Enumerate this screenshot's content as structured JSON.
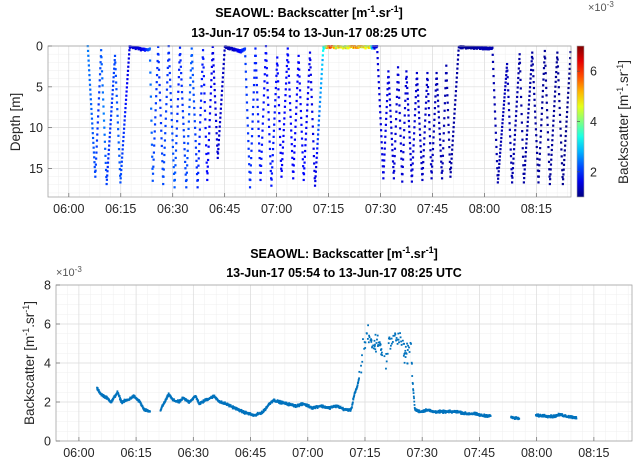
{
  "chart_data": [
    {
      "type": "scatter",
      "title_parts": [
        "SEAOWL: Backscatter [m",
        "-1",
        ".sr",
        "-1",
        "]"
      ],
      "subtitle": "13-Jun-17 05:54 to 13-Jun-17 08:25 UTC",
      "xlabel": "",
      "ylabel": "Depth [m]",
      "xlim": [
        "05:54",
        "08:25"
      ],
      "ylim": [
        0,
        18.5
      ],
      "y_reversed": true,
      "x_ticks": [
        "06:00",
        "06:15",
        "06:30",
        "06:45",
        "07:00",
        "07:15",
        "07:30",
        "07:45",
        "08:00",
        "08:15"
      ],
      "y_ticks": [
        "0",
        "5",
        "10",
        "15"
      ],
      "grid": "major+minor",
      "color_by": "backscatter",
      "colorbar": {
        "label_parts": [
          "Backscatter [m",
          "-1",
          ".sr",
          "-1",
          "]"
        ],
        "exponent_base": "×10",
        "exponent_power": "-3",
        "clim": [
          1,
          7
        ],
        "ticks": [
          "2",
          "4",
          "6"
        ],
        "colormap": "jet",
        "location": "right"
      },
      "profile": [
        [
          "06:05:27",
          0
        ],
        [
          "06:07:38",
          16.0
        ],
        [
          "06:09:19",
          0.5
        ],
        [
          "06:10:54",
          16.9
        ],
        [
          "06:13:19",
          1.2
        ],
        [
          "06:14:53",
          16.7
        ],
        [
          "06:17:33",
          0
        ],
        [
          "06:22:38",
          0.4
        ],
        [
          "06:23:22",
          0.3
        ],
        [
          "06:24:13",
          16.5
        ],
        [
          "06:25:47",
          0.1
        ],
        [
          "06:27:14",
          16.9
        ],
        [
          "06:28:49",
          0
        ],
        [
          "06:30:31",
          17.3
        ],
        [
          "06:32:05",
          0.2
        ],
        [
          "06:33:54",
          17.3
        ],
        [
          "06:35:28",
          0.3
        ],
        [
          "06:37:10",
          17.3
        ],
        [
          "06:38:44",
          0.5
        ],
        [
          "06:39:57",
          16.4
        ],
        [
          "06:41:32",
          0.1
        ],
        [
          "06:42:59",
          13.7
        ],
        [
          "06:45:02",
          0
        ],
        [
          "06:49:38",
          0.5
        ],
        [
          "06:50:51",
          0.3
        ],
        [
          "06:52:18",
          17.3
        ],
        [
          "06:53:52",
          0.3
        ],
        [
          "06:55:20",
          16.4
        ],
        [
          "06:56:54",
          0
        ],
        [
          "06:58:28",
          17.1
        ],
        [
          "07:00:10",
          1.4
        ],
        [
          "07:01:23",
          16.0
        ],
        [
          "07:03:12",
          0.3
        ],
        [
          "07:04:46",
          16.2
        ],
        [
          "07:06:20",
          1.2
        ],
        [
          "07:07:48",
          16.4
        ],
        [
          "07:09:37",
          0.8
        ],
        [
          "07:11:04",
          17.1
        ],
        [
          "07:13:29",
          0
        ],
        [
          "07:28:59",
          0
        ],
        [
          "07:30:48",
          16.2
        ],
        [
          "07:32:15",
          3.1
        ],
        [
          "07:33:50",
          16.2
        ],
        [
          "07:35:02",
          2.6
        ],
        [
          "07:36:15",
          16.6
        ],
        [
          "07:37:27",
          3.1
        ],
        [
          "07:39:02",
          16.6
        ],
        [
          "07:40:29",
          3.3
        ],
        [
          "07:42:04",
          16.4
        ],
        [
          "07:43:31",
          3.3
        ],
        [
          "07:44:43",
          16.2
        ],
        [
          "07:46:10",
          3.3
        ],
        [
          "07:47:45",
          16.2
        ],
        [
          "07:48:58",
          2.4
        ],
        [
          "07:50:10",
          16.0
        ],
        [
          "07:52:35",
          0
        ],
        [
          "08:02:17",
          0.2
        ],
        [
          "08:03:51",
          16.7
        ],
        [
          "08:06:31",
          2.2
        ],
        [
          "08:07:58",
          16.7
        ],
        [
          "08:10:09",
          1.0
        ],
        [
          "08:11:22",
          16.7
        ],
        [
          "08:13:47",
          0.8
        ],
        [
          "08:15:35",
          16.7
        ],
        [
          "08:17:25",
          0.6
        ],
        [
          "08:18:52",
          16.9
        ],
        [
          "08:21:02",
          0.8
        ],
        [
          "08:22:37",
          16.9
        ],
        [
          "08:24:40",
          2.2
        ],
        [
          "08:24:55",
          0
        ]
      ]
    },
    {
      "type": "scatter",
      "title_parts": [
        "SEAOWL: Backscatter [m",
        "-1",
        ".sr",
        "-1",
        "]"
      ],
      "subtitle": "13-Jun-17 05:54 to 13-Jun-17 08:25 UTC",
      "xlabel": "",
      "ylabel_parts": [
        "Backscatter [m",
        "-1",
        ".sr",
        "-1",
        "]"
      ],
      "exponent_base": "×10",
      "exponent_power": "-3",
      "xlim": [
        "05:54",
        "08:25"
      ],
      "ylim": [
        0,
        8
      ],
      "x_ticks": [
        "06:00",
        "06:15",
        "06:30",
        "06:45",
        "07:00",
        "07:15",
        "07:30",
        "07:45",
        "08:00",
        "08:15"
      ],
      "y_ticks": [
        "0",
        "2",
        "4",
        "6",
        "8"
      ],
      "grid": "major+minor",
      "series": {
        "color": "#0072BD",
        "x": [
          "06:04:45",
          "06:05:48",
          "06:07:24",
          "06:08:30",
          "06:10:06",
          "06:11:12",
          "06:12:48",
          "06:14:24",
          "06:16:00",
          "06:17:06",
          "06:18:42",
          "06:21:24",
          "06:22:30",
          "06:23:36",
          "06:24:36",
          "06:26:18",
          "06:27:18",
          "06:28:54",
          "06:30:36",
          "06:31:36",
          "06:33:12",
          "06:35:24",
          "06:37:00",
          "06:38:36",
          "06:40:48",
          "06:42:54",
          "06:44:30",
          "06:46:06",
          "06:48:18",
          "06:49:54",
          "06:51:00",
          "06:52:36",
          "06:54:42",
          "06:56:54",
          "06:59:00",
          "07:01:12",
          "07:03:18",
          "07:05:30",
          "07:07:36",
          "07:09:48",
          "07:11:24",
          "07:12:12",
          "07:13:00",
          "07:13:54",
          "07:14:36",
          "07:15:30",
          "07:16:12",
          "07:17:18",
          "07:18:24",
          "07:19:30",
          "07:20:30",
          "07:21:36",
          "07:22:42",
          "07:23:48",
          "07:24:48",
          "07:25:54",
          "07:27:00",
          "07:27:30",
          "07:28:06",
          "07:29:42",
          "07:31:18",
          "07:32:54",
          "07:35:06",
          "07:37:12",
          "07:39:24",
          "07:41:30",
          "07:43:42",
          "07:45:48",
          "07:48:00",
          "07:50:42",
          "07:53:18",
          "07:55:30",
          "07:59:48",
          "08:01:54",
          "08:04:06",
          "08:06:12",
          "08:08:24",
          "08:10:30",
          "08:13:12",
          "08:16:24",
          "08:19:42",
          "08:22:18",
          "08:25:00"
        ],
        "y": [
          2.7,
          2.4,
          2.2,
          2.0,
          2.5,
          2.0,
          2.1,
          2.3,
          2.0,
          1.6,
          1.5,
          1.6,
          2.0,
          2.4,
          2.1,
          2.0,
          2.2,
          2.0,
          2.3,
          1.9,
          2.1,
          2.3,
          2.0,
          1.9,
          1.7,
          1.5,
          1.4,
          1.3,
          1.5,
          1.9,
          2.1,
          2.0,
          1.9,
          1.8,
          1.9,
          1.7,
          1.8,
          1.7,
          1.8,
          1.6,
          1.6,
          2.4,
          2.8,
          3.6,
          4.8,
          5.5,
          5.4,
          4.7,
          5.2,
          4.6,
          4.4,
          5.1,
          5.4,
          5.1,
          5.0,
          4.4,
          4.9,
          3.0,
          1.6,
          1.5,
          1.6,
          1.5,
          1.5,
          1.5,
          1.5,
          1.4,
          1.4,
          1.3,
          1.3,
          1.2,
          1.2,
          1.15,
          1.3,
          1.3,
          1.25,
          1.35,
          1.25,
          1.2,
          1.2,
          1.15,
          1.15,
          1.1,
          1.05
        ]
      }
    }
  ]
}
